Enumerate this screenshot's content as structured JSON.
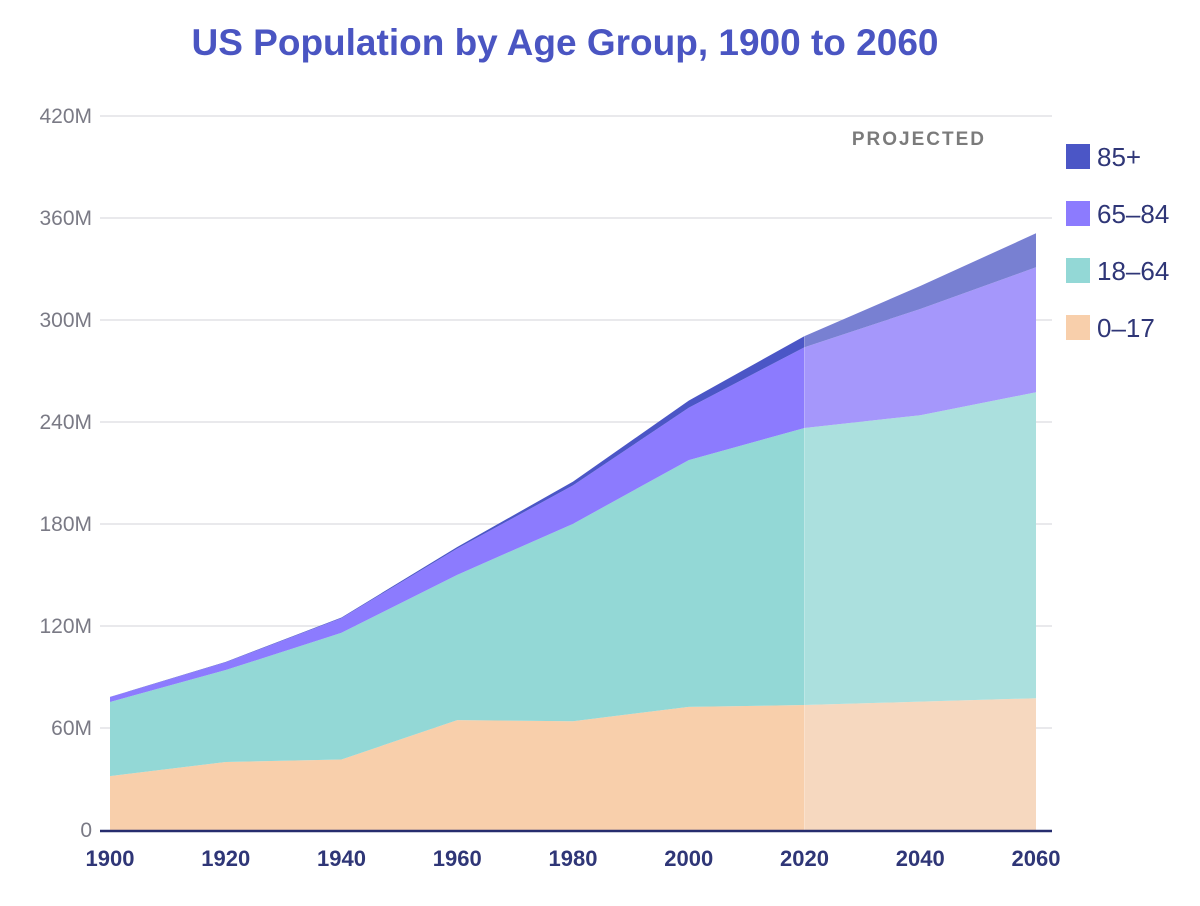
{
  "chart_data": {
    "type": "area",
    "stacked": true,
    "title": "US Population by Age Group, 1900 to 2060",
    "x": [
      1900,
      1920,
      1940,
      1960,
      1980,
      2000,
      2020,
      2040,
      2060
    ],
    "x_tick_labels": [
      "1900",
      "1920",
      "1940",
      "1960",
      "1980",
      "2000",
      "2020",
      "2040",
      "2060"
    ],
    "ylim": [
      0,
      420
    ],
    "y_ticks": [
      0,
      60,
      120,
      180,
      240,
      300,
      360,
      420
    ],
    "y_tick_labels": [
      "0",
      "60M",
      "120M",
      "180M",
      "240M",
      "300M",
      "360M",
      "420M"
    ],
    "projection_start": 2020,
    "projection_label": "PROJECTED",
    "grid": true,
    "legend_position": "right",
    "series": [
      {
        "name": "0–17",
        "color": "#f8cfab",
        "projected_color": "#f6d8bf",
        "values": [
          31.7,
          40.0,
          41.5,
          64.6,
          64.0,
          72.4,
          73.5,
          75.5,
          77.5
        ]
      },
      {
        "name": "18–64",
        "color": "#93d8d6",
        "projected_color": "#abe0de",
        "values": [
          43.6,
          54.1,
          74.5,
          85.5,
          116.1,
          145.2,
          163.0,
          168.5,
          180.0
        ]
      },
      {
        "name": "65–84",
        "color": "#8c7bfe",
        "projected_color": "#a597fb",
        "values": [
          2.9,
          4.6,
          8.6,
          15.5,
          22.6,
          30.8,
          47.5,
          62.5,
          73.5
        ]
      },
      {
        "name": "85+",
        "color": "#4b56c6",
        "projected_color": "#7880d2",
        "values": [
          0.1,
          0.2,
          0.4,
          0.9,
          2.2,
          4.2,
          6.5,
          13.5,
          20.0
        ]
      }
    ]
  }
}
